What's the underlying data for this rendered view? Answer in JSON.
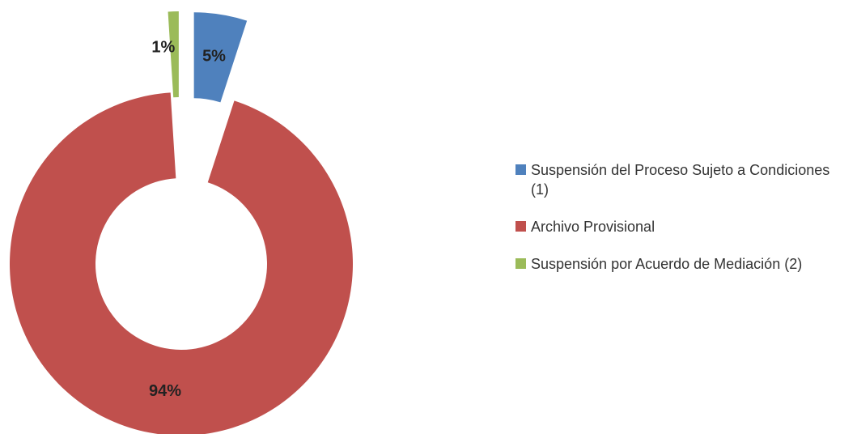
{
  "chart_data": {
    "type": "donut",
    "categories": [
      "Suspensión del Proceso Sujeto a Condiciones (1)",
      "Archivo Provisional",
      "Suspensión por Acuerdo de Mediación (2)"
    ],
    "values": [
      5,
      94,
      1
    ],
    "value_labels": [
      "5%",
      "94%",
      "1%"
    ],
    "colors": [
      "#4f81bd",
      "#c0504d",
      "#9bbb59"
    ],
    "legend": "right"
  }
}
